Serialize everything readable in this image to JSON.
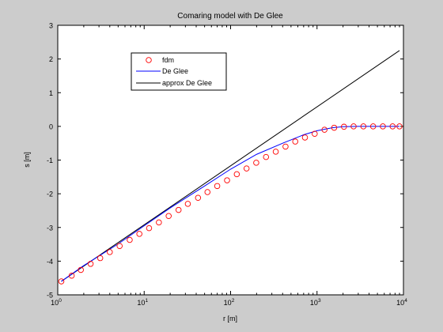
{
  "colors": {
    "figure_bg": "#cccccc",
    "axes_bg": "#ffffff",
    "fdm": "#ff0000",
    "degl": "#0000ff",
    "approx": "#000000"
  },
  "chart_data": {
    "type": "line",
    "title": "Comaring model with De Glee",
    "xlabel": "r [m]",
    "ylabel": "s [m]",
    "xscale": "log",
    "xlim": [
      1,
      10000
    ],
    "ylim": [
      -5,
      3
    ],
    "xticks": [
      {
        "base": "10",
        "exp": "0"
      },
      {
        "base": "10",
        "exp": "1"
      },
      {
        "base": "10",
        "exp": "2"
      },
      {
        "base": "10",
        "exp": "3"
      },
      {
        "base": "10",
        "exp": "4"
      }
    ],
    "yticks": [
      "-5",
      "-4",
      "-3",
      "-2",
      "-1",
      "0",
      "1",
      "2",
      "3"
    ],
    "grid": false,
    "legend_position": "upper-left",
    "series": [
      {
        "name": "fdm",
        "marker": "circle",
        "x": [
          1.1,
          1.45,
          1.85,
          2.4,
          3.1,
          4.0,
          5.2,
          6.8,
          8.8,
          11.4,
          14.8,
          19.2,
          25,
          32,
          42,
          54,
          70,
          91,
          118,
          153,
          198,
          257,
          333,
          432,
          560,
          725,
          940,
          1220,
          1580,
          2050,
          2650,
          3440,
          4460,
          5780,
          7490,
          9000
        ],
        "y": [
          -4.6,
          -4.43,
          -4.26,
          -4.08,
          -3.91,
          -3.73,
          -3.55,
          -3.37,
          -3.19,
          -3.02,
          -2.85,
          -2.66,
          -2.48,
          -2.3,
          -2.12,
          -1.95,
          -1.77,
          -1.6,
          -1.42,
          -1.25,
          -1.08,
          -0.91,
          -0.75,
          -0.6,
          -0.45,
          -0.33,
          -0.22,
          -0.1,
          -0.04,
          -0.01,
          0,
          0,
          0,
          0,
          0,
          0
        ]
      },
      {
        "name": "De Glee",
        "x": [
          1.1,
          2,
          5,
          10,
          20,
          50,
          100,
          200,
          400,
          700,
          1000,
          1500,
          2000,
          3000,
          5000,
          9000
        ],
        "y": [
          -4.6,
          -4.13,
          -3.49,
          -2.95,
          -2.42,
          -1.77,
          -1.27,
          -0.83,
          -0.5,
          -0.25,
          -0.13,
          -0.04,
          -0.01,
          0,
          0,
          0
        ]
      },
      {
        "name": "approx De Glee",
        "x": [
          1.1,
          9000
        ],
        "y": [
          -4.6,
          2.25
        ]
      }
    ]
  }
}
